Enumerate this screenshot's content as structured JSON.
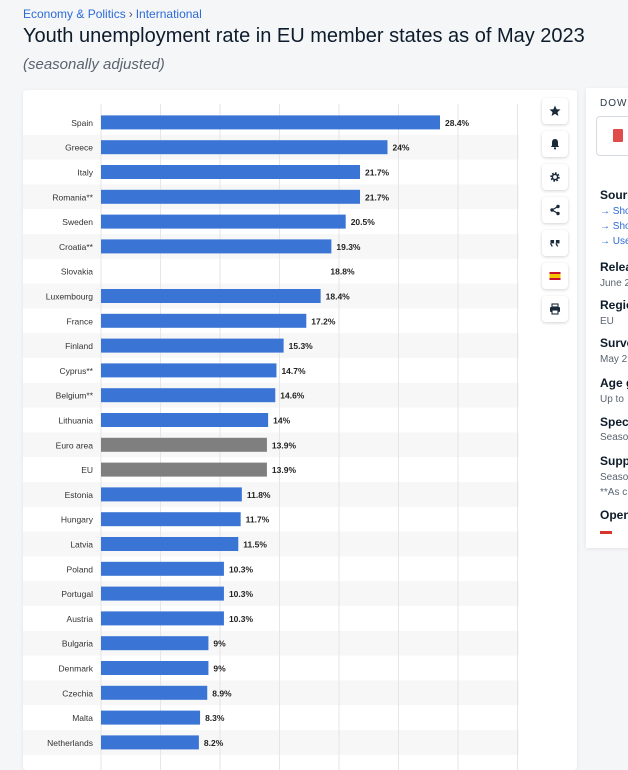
{
  "breadcrumb": {
    "part1": "Economy & Politics",
    "separator": "›",
    "part2": "International"
  },
  "header": {
    "title": "Youth unemployment rate in EU member states as of May 2023",
    "subtitle": "(seasonally adjusted)"
  },
  "chart_data": {
    "type": "bar",
    "orientation": "horizontal",
    "categories": [
      "Spain",
      "Greece",
      "Italy",
      "Romania**",
      "Sweden",
      "Croatia**",
      "Slovakia",
      "Luxembourg",
      "France",
      "Finland",
      "Cyprus**",
      "Belgium**",
      "Lithuania",
      "Euro area",
      "EU",
      "Estonia",
      "Hungary",
      "Latvia",
      "Poland",
      "Portugal",
      "Austria",
      "Bulgaria",
      "Denmark",
      "Czechia",
      "Malta",
      "Netherlands"
    ],
    "values": [
      28.4,
      24,
      21.7,
      21.7,
      20.5,
      19.3,
      18.8,
      18.4,
      17.2,
      15.3,
      14.7,
      14.6,
      14,
      13.9,
      13.9,
      11.8,
      11.7,
      11.5,
      10.3,
      10.3,
      10.3,
      9,
      9,
      8.9,
      8.3,
      8.2
    ],
    "labels": [
      "28.4%",
      "24%",
      "21.7%",
      "21.7%",
      "20.5%",
      "19.3%",
      "18.8%",
      "18.4%",
      "17.2%",
      "15.3%",
      "14.7%",
      "14.6%",
      "14%",
      "13.9%",
      "13.9%",
      "11.8%",
      "11.7%",
      "11.5%",
      "10.3%",
      "10.3%",
      "10.3%",
      "9%",
      "9%",
      "8.9%",
      "8.3%",
      "8.2%"
    ],
    "highlight": [
      "Euro area",
      "EU"
    ],
    "no_bar": [
      "Slovakia"
    ],
    "xlim": [
      0,
      28.4
    ],
    "grid": true,
    "colors": {
      "bar": "#3a75d6",
      "highlight": "#7f7f7f",
      "grid": "#e6e6e6",
      "stripe": "#f7f7f7"
    }
  },
  "toolbar": {
    "buttons": [
      {
        "name": "favorite-button",
        "icon": "star-icon"
      },
      {
        "name": "notification-button",
        "icon": "bell-icon"
      },
      {
        "name": "settings-button",
        "icon": "gear-icon"
      },
      {
        "name": "share-button",
        "icon": "share-icon"
      },
      {
        "name": "cite-button",
        "icon": "quote-icon"
      },
      {
        "name": "language-button",
        "icon": "flag-icon"
      },
      {
        "name": "print-button",
        "icon": "printer-icon"
      }
    ]
  },
  "sidebar": {
    "download": "DOWN",
    "source_heading": "Sourc",
    "source_links": [
      "→ Sho",
      "→ Sho",
      "→ Use"
    ],
    "release_heading": "Relea",
    "release_value": "June 2",
    "region_heading": "Regio",
    "region_value": "EU",
    "survey_heading": "Surve",
    "survey_value": "May 2",
    "age_heading": "Age g",
    "age_value": "Up to",
    "special_heading": "Speci",
    "special_value": "Seaso",
    "supp_heading": "Supp",
    "supp_value1": "Seaso",
    "supp_value2": "**As c",
    "open_heading": "Open"
  }
}
